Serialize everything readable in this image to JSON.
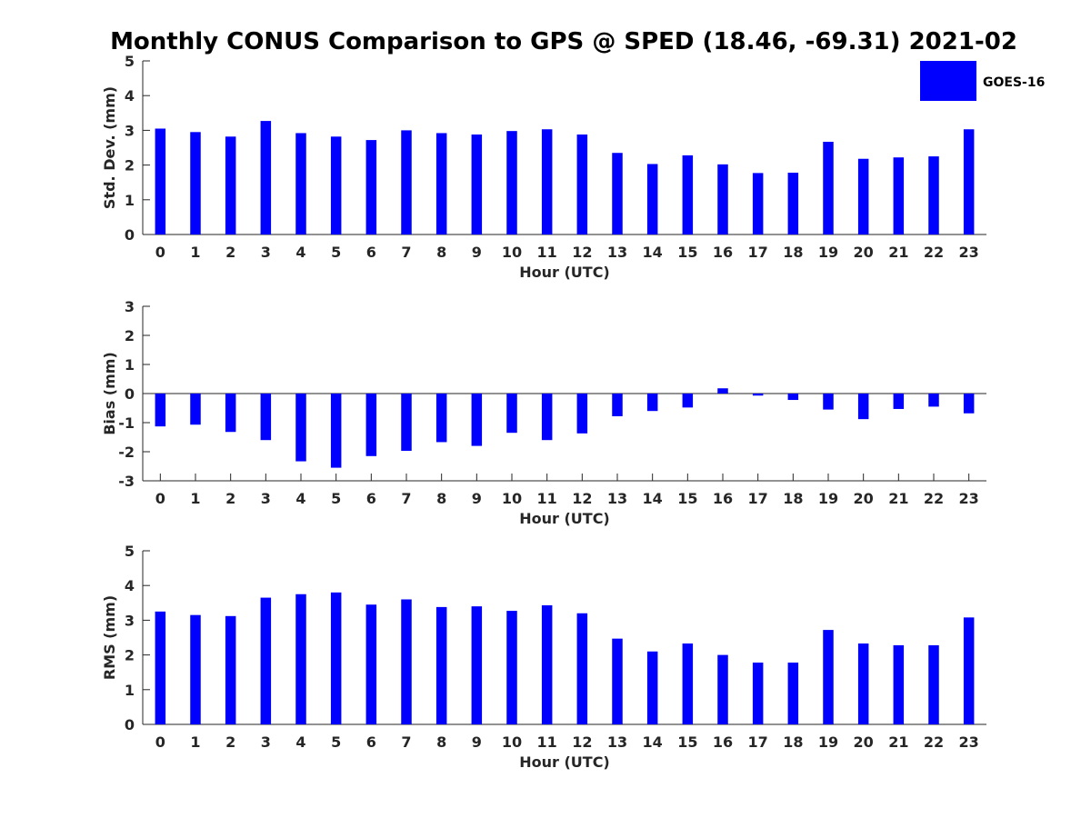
{
  "figure": {
    "title": "Monthly CONUS Comparison to GPS @ SPED (18.46, -69.31) 2021-02",
    "legend": {
      "label": "GOES-16",
      "color": "#0000ff",
      "placement": "top-right"
    }
  },
  "chart_data": [
    {
      "type": "bar",
      "xlabel": "Hour (UTC)",
      "ylabel": "Std. Dev. (mm)",
      "ylim": [
        0,
        5
      ],
      "yticks": [
        0,
        1,
        2,
        3,
        4,
        5
      ],
      "categories": [
        "0",
        "1",
        "2",
        "3",
        "4",
        "5",
        "6",
        "7",
        "8",
        "9",
        "10",
        "11",
        "12",
        "13",
        "14",
        "15",
        "16",
        "17",
        "18",
        "19",
        "20",
        "21",
        "22",
        "23"
      ],
      "series": [
        {
          "name": "GOES-16",
          "color": "#0000ff",
          "values": [
            3.05,
            2.95,
            2.82,
            3.27,
            2.92,
            2.82,
            2.72,
            3.0,
            2.92,
            2.88,
            2.98,
            3.03,
            2.88,
            2.35,
            2.03,
            2.28,
            2.02,
            1.77,
            1.78,
            2.67,
            2.18,
            2.22,
            2.25,
            3.03
          ]
        }
      ]
    },
    {
      "type": "bar",
      "xlabel": "Hour (UTC)",
      "ylabel": "Bias (mm)",
      "ylim": [
        -3,
        3
      ],
      "yticks": [
        -3,
        -2,
        -1,
        0,
        1,
        2,
        3
      ],
      "categories": [
        "0",
        "1",
        "2",
        "3",
        "4",
        "5",
        "6",
        "7",
        "8",
        "9",
        "10",
        "11",
        "12",
        "13",
        "14",
        "15",
        "16",
        "17",
        "18",
        "19",
        "20",
        "21",
        "22",
        "23"
      ],
      "series": [
        {
          "name": "GOES-16",
          "color": "#0000ff",
          "values": [
            -1.13,
            -1.07,
            -1.32,
            -1.6,
            -2.33,
            -2.55,
            -2.15,
            -1.97,
            -1.67,
            -1.8,
            -1.35,
            -1.6,
            -1.37,
            -0.78,
            -0.6,
            -0.48,
            0.18,
            -0.07,
            -0.22,
            -0.55,
            -0.88,
            -0.53,
            -0.45,
            -0.68
          ]
        }
      ]
    },
    {
      "type": "bar",
      "xlabel": "Hour (UTC)",
      "ylabel": "RMS (mm)",
      "ylim": [
        0,
        5
      ],
      "yticks": [
        0,
        1,
        2,
        3,
        4,
        5
      ],
      "categories": [
        "0",
        "1",
        "2",
        "3",
        "4",
        "5",
        "6",
        "7",
        "8",
        "9",
        "10",
        "11",
        "12",
        "13",
        "14",
        "15",
        "16",
        "17",
        "18",
        "19",
        "20",
        "21",
        "22",
        "23"
      ],
      "series": [
        {
          "name": "GOES-16",
          "color": "#0000ff",
          "values": [
            3.25,
            3.15,
            3.12,
            3.65,
            3.75,
            3.8,
            3.45,
            3.6,
            3.38,
            3.4,
            3.27,
            3.43,
            3.2,
            2.47,
            2.1,
            2.33,
            2.0,
            1.78,
            1.78,
            2.72,
            2.33,
            2.28,
            2.28,
            3.08
          ]
        }
      ]
    }
  ]
}
